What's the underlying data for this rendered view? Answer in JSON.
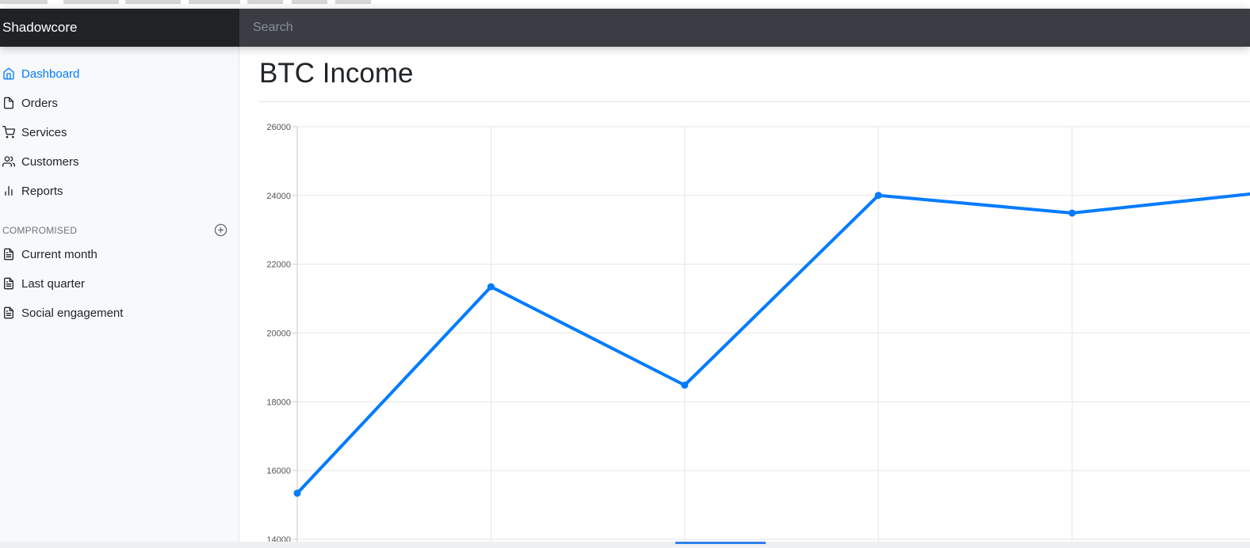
{
  "navbar": {
    "brand": "Shadowcore",
    "search_placeholder": "Search"
  },
  "sidebar": {
    "items": [
      {
        "label": "Dashboard",
        "icon": "home-icon",
        "active": true
      },
      {
        "label": "Orders",
        "icon": "file-icon",
        "active": false
      },
      {
        "label": "Services",
        "icon": "cart-icon",
        "active": false
      },
      {
        "label": "Customers",
        "icon": "users-icon",
        "active": false
      },
      {
        "label": "Reports",
        "icon": "bar-chart-icon",
        "active": false
      }
    ],
    "section_title": "COMPROMISED",
    "section_icon": "plus-circle-icon",
    "reports": [
      {
        "label": "Current month",
        "icon": "file-text-icon"
      },
      {
        "label": "Last quarter",
        "icon": "file-text-icon"
      },
      {
        "label": "Social engagement",
        "icon": "file-text-icon"
      }
    ]
  },
  "main": {
    "title": "BTC Income"
  },
  "colors": {
    "accent": "#007bff",
    "navbar": "#343a40"
  },
  "chart_data": {
    "type": "line",
    "x": [
      0,
      1,
      2,
      3,
      4,
      5
    ],
    "series": [
      {
        "values": [
          15339,
          21345,
          18483,
          24003,
          23489,
          24092
        ]
      }
    ],
    "y_ticks": [
      "26000",
      "24000",
      "22000",
      "20000",
      "18000",
      "16000",
      "14000"
    ],
    "ylim": [
      14000,
      26000
    ],
    "grid": true,
    "color": "#007bff"
  }
}
